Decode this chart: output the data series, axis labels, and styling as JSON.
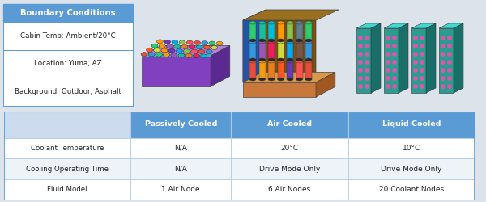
{
  "bg_color": "#dde3ea",
  "box": {
    "title": "Boundary Conditions",
    "title_bg": "#5b9bd5",
    "title_color": "white",
    "rows": [
      "Cabin Temp: Ambient/20°C",
      "Location: Yuma, AZ",
      "Background: Outdoor, Asphalt"
    ],
    "row_bg": "white",
    "row_color": "#222222",
    "border_color": "#5b9bd5"
  },
  "table": {
    "header_bg": "#5b9bd5",
    "header_color": "white",
    "col_headers": [
      "",
      "Passively Cooled",
      "Air Cooled",
      "Liquid Cooled"
    ],
    "rows": [
      [
        "Coolant Temperature",
        "N/A",
        "20°C",
        "10°C"
      ],
      [
        "Cooling Operating Time",
        "N/A",
        "Drive Mode Only",
        "Drive Mode Only"
      ],
      [
        "Fluid Model",
        "1 Air Node",
        "6 Air Nodes",
        "20 Coolant Nodes"
      ]
    ],
    "row_bg_even": "white",
    "row_bg_odd": "#eef3f8",
    "divider_color": "#aec8e0",
    "text_color": "#222222",
    "border_color": "#5b9bd5"
  }
}
